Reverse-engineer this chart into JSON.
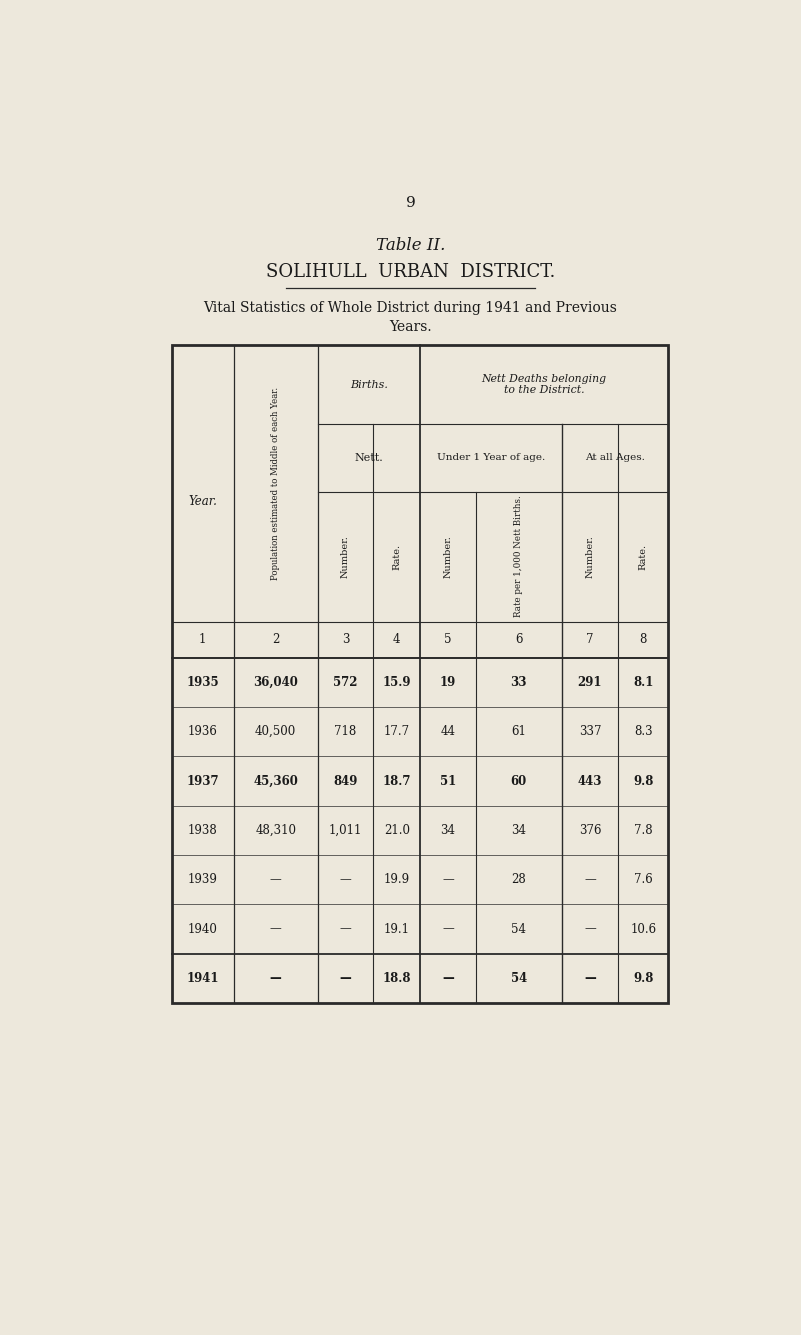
{
  "page_number": "9",
  "table_title": "Table II.",
  "subtitle1": "SOLIHULL  URBAN  DISTRICT.",
  "subtitle2": "Vital Statistics of Whole District during 1941 and Previous",
  "subtitle3": "Years.",
  "bg_color": "#EDE8DC",
  "col_numbers": [
    "1",
    "2",
    "3",
    "4",
    "5",
    "6",
    "7",
    "8"
  ],
  "rows": [
    [
      "1935",
      "36,040",
      "572",
      "15.9",
      "19",
      "33",
      "291",
      "8.1"
    ],
    [
      "1936",
      "40,500",
      "718",
      "17.7",
      "44",
      "61",
      "337",
      "8.3"
    ],
    [
      "1937",
      "45,360",
      "849",
      "18.7",
      "51",
      "60",
      "443",
      "9.8"
    ],
    [
      "1938",
      "48,310",
      "1,011",
      "21.0",
      "34",
      "34",
      "376",
      "7.8"
    ],
    [
      "1939",
      "—",
      "—",
      "19.9",
      "—",
      "28",
      "—",
      "7.6"
    ],
    [
      "1940",
      "—",
      "—",
      "19.1",
      "—",
      "54",
      "—",
      "10.6"
    ],
    [
      "1941",
      "—",
      "—",
      "18.8",
      "—",
      "54",
      "—",
      "9.8"
    ]
  ],
  "year_col_label": "Year.",
  "col2_label": "Population estimated to Middle of each Year.",
  "births_label": "Births.",
  "births_sub_label": "Nett.",
  "nett_deaths_label": "Nett Deaths belonging to the District.",
  "under1yr_label": "Under 1 Year of age.",
  "allages_label": "At all Ages.",
  "col3_label": "Number.",
  "col4_label": "Rate.",
  "col5_label": "Number.",
  "col6_label": "Rate per 1,000 Nett Births.",
  "col7_label": "Number.",
  "col8_label": "Rate.",
  "text_color": "#1a1a1a",
  "line_color": "#2a2a2a",
  "bold_years": [
    "1935",
    "1937",
    "1941"
  ]
}
